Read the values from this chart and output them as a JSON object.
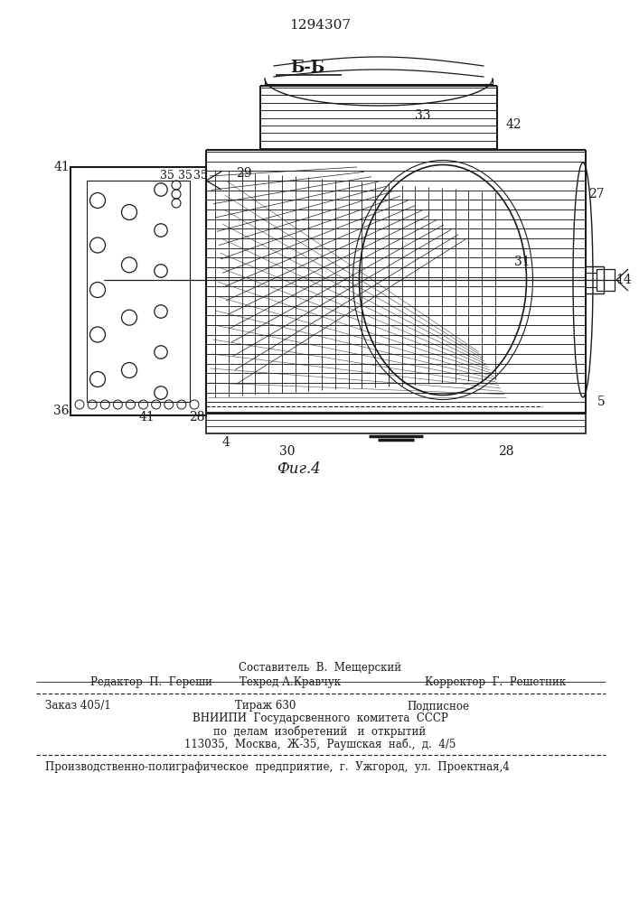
{
  "patent_number": "1294307",
  "figure_label": "Фиг.4",
  "section_label": "Б-Б",
  "bg_color": "#ffffff",
  "line_color": "#1a1a1a",
  "footer": {
    "sestavitel": "Составитель  В.  Мещерский",
    "redaktor": "Редактор  П.  Гереши",
    "tehred": "Техред А.Кравчук",
    "korrektor": "Корректор  Г.  Решетник",
    "zakaz": "Заказ 405/1",
    "tirazh": "Тираж 630",
    "podpisnoe": "Подписное",
    "vnipi_line1": "ВНИИПИ  Государсвенного  комитета  СССР",
    "vnipi_line2": "по  делам  изобретений   и  открытий",
    "vnipi_line3": "113035,  Москва,  Ж-35,  Раушская  наб.,  д.  4/5",
    "proizv": "Производственно-полиграфическое  предприятие,  г.  Ужгород,  ул.  Проектная,4"
  }
}
